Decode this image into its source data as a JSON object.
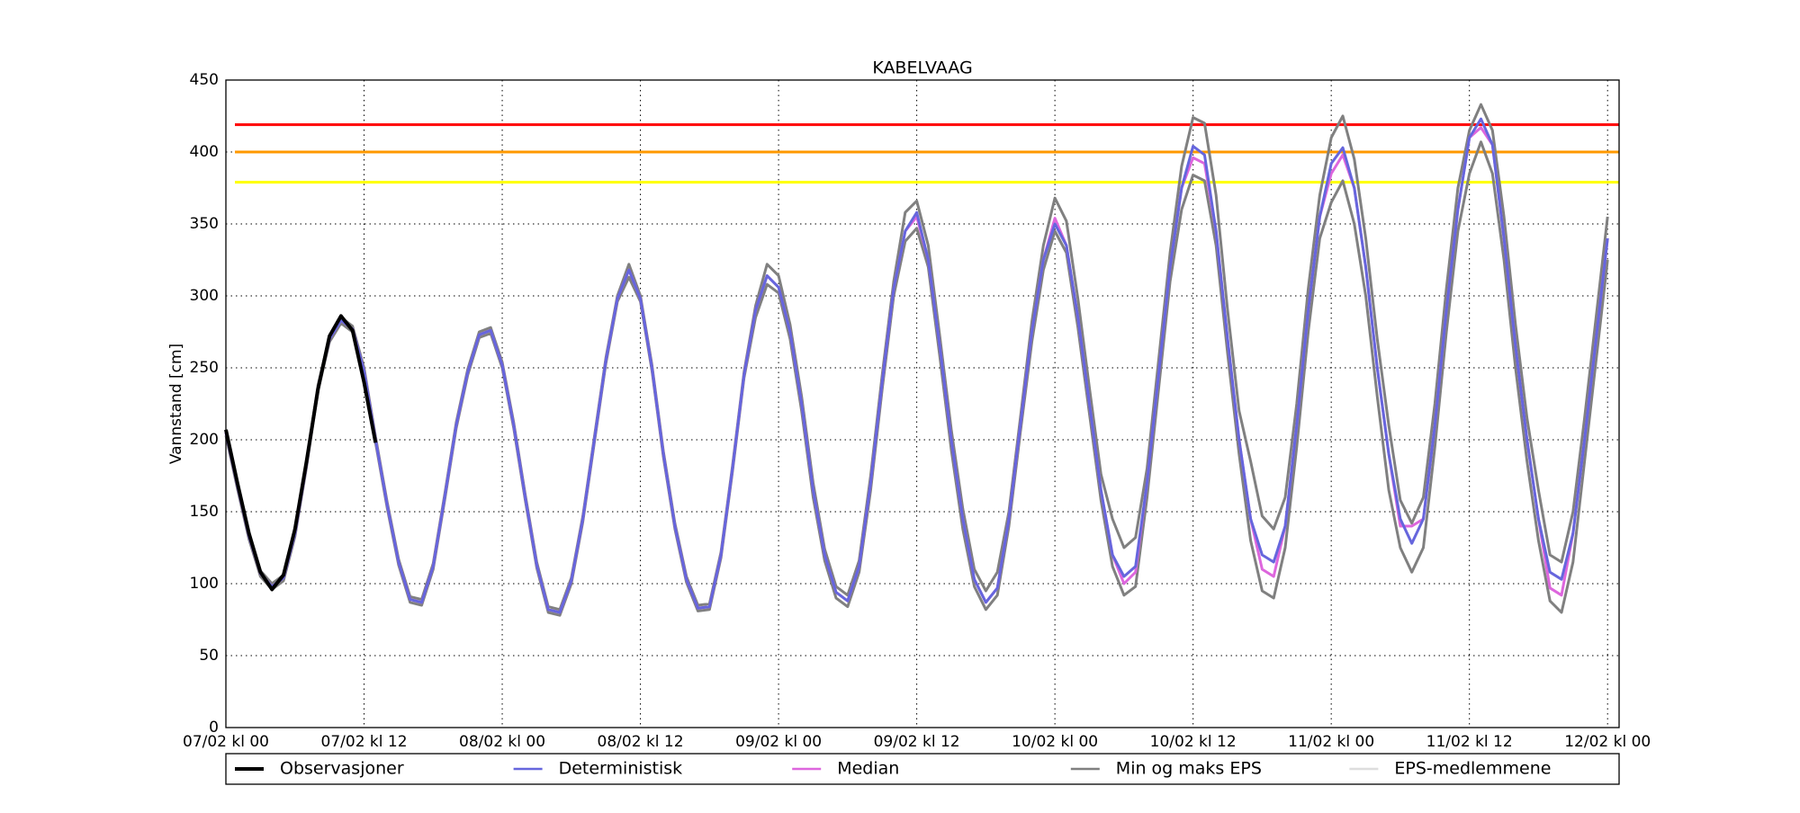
{
  "chart_data": {
    "type": "line",
    "title": "KABELVAAG",
    "y_label": "Vannstand [cm]",
    "x": [
      0,
      1,
      2,
      3,
      4,
      5,
      6,
      7,
      8,
      9,
      10,
      11,
      12,
      13,
      14,
      15,
      16,
      17,
      18,
      19,
      20,
      21,
      22,
      23,
      24,
      25,
      26,
      27,
      28,
      29,
      30,
      31,
      32,
      33,
      34,
      35,
      36,
      37,
      38,
      39,
      40,
      41,
      42,
      43,
      44,
      45,
      46,
      47,
      48,
      49,
      50,
      51,
      52,
      53,
      54,
      55,
      56,
      57,
      58,
      59,
      60,
      61,
      62,
      63,
      64,
      65,
      66,
      67,
      68,
      69,
      70,
      71,
      72,
      73,
      74,
      75,
      76,
      77,
      78,
      79,
      80,
      81,
      82,
      83,
      84,
      85,
      86,
      87,
      88,
      89,
      90,
      91,
      92,
      93,
      94,
      95,
      96,
      97,
      98,
      99,
      100,
      101,
      102,
      103,
      104,
      105,
      106,
      107,
      108,
      109,
      110,
      111,
      112,
      113,
      114,
      115,
      116,
      117,
      118,
      119,
      120
    ],
    "xlim": [
      0,
      121
    ],
    "xticks": [
      {
        "value": 0,
        "label": "07/02 kl 00"
      },
      {
        "value": 12,
        "label": "07/02 kl 12"
      },
      {
        "value": 24,
        "label": "08/02 kl 00"
      },
      {
        "value": 36,
        "label": "08/02 kl 12"
      },
      {
        "value": 48,
        "label": "09/02 kl 00"
      },
      {
        "value": 60,
        "label": "09/02 kl 12"
      },
      {
        "value": 72,
        "label": "10/02 kl 00"
      },
      {
        "value": 84,
        "label": "10/02 kl 12"
      },
      {
        "value": 96,
        "label": "11/02 kl 00"
      },
      {
        "value": 108,
        "label": "11/02 kl 12"
      },
      {
        "value": 120,
        "label": "12/02 kl 00"
      }
    ],
    "ylim": [
      0,
      450
    ],
    "yticks": [
      0,
      50,
      100,
      150,
      200,
      250,
      300,
      350,
      400,
      450
    ],
    "grid": true,
    "reference_lines": [
      {
        "value": 419,
        "color": "#ff0000"
      },
      {
        "value": 400,
        "color": "#ff9900"
      },
      {
        "value": 379,
        "color": "#ffff00"
      }
    ],
    "series": [
      {
        "name": "Observasjoner",
        "color": "#000000",
        "x": [
          0,
          1,
          2,
          3,
          4,
          5,
          6,
          7,
          8,
          9,
          10,
          11,
          12,
          13
        ],
        "values": [
          207,
          170,
          135,
          108,
          96,
          106,
          138,
          185,
          235,
          272,
          286,
          276,
          240,
          198
        ]
      },
      {
        "name": "Deterministisk",
        "color": "#6666dd",
        "values": [
          205,
          168,
          133,
          107,
          98,
          104,
          135,
          183,
          236,
          270,
          283,
          277,
          248,
          200,
          155,
          115,
          89,
          87,
          112,
          160,
          210,
          247,
          273,
          276,
          252,
          210,
          160,
          113,
          82,
          80,
          102,
          145,
          200,
          255,
          298,
          318,
          298,
          250,
          190,
          140,
          103,
          83,
          84,
          120,
          180,
          245,
          290,
          314,
          306,
          275,
          225,
          165,
          120,
          94,
          88,
          112,
          170,
          240,
          305,
          345,
          358,
          325,
          265,
          200,
          145,
          103,
          87,
          97,
          145,
          210,
          275,
          325,
          350,
          335,
          285,
          225,
          165,
          120,
          105,
          112,
          170,
          245,
          320,
          375,
          404,
          398,
          345,
          270,
          200,
          145,
          120,
          115,
          140,
          210,
          290,
          355,
          392,
          403,
          375,
          320,
          250,
          190,
          145,
          128,
          145,
          210,
          290,
          360,
          410,
          423,
          405,
          340,
          265,
          200,
          145,
          108,
          103,
          135,
          200,
          270,
          340
        ]
      },
      {
        "name": "Median",
        "color": "#dd66dd",
        "values": [
          205,
          168,
          133,
          107,
          98,
          104,
          135,
          183,
          236,
          270,
          283,
          277,
          248,
          200,
          155,
          115,
          89,
          87,
          112,
          160,
          210,
          247,
          273,
          276,
          252,
          210,
          160,
          113,
          82,
          80,
          102,
          145,
          200,
          255,
          298,
          318,
          298,
          250,
          190,
          140,
          103,
          83,
          84,
          120,
          180,
          245,
          290,
          314,
          306,
          275,
          225,
          165,
          120,
          94,
          88,
          112,
          170,
          240,
          305,
          345,
          355,
          325,
          265,
          200,
          145,
          103,
          87,
          97,
          145,
          210,
          275,
          325,
          354,
          335,
          285,
          225,
          165,
          120,
          100,
          108,
          170,
          245,
          320,
          375,
          396,
          392,
          345,
          270,
          200,
          145,
          110,
          105,
          140,
          210,
          290,
          355,
          385,
          398,
          375,
          320,
          250,
          190,
          140,
          140,
          145,
          210,
          290,
          360,
          410,
          417,
          405,
          340,
          265,
          200,
          145,
          97,
          92,
          135,
          200,
          270,
          340
        ]
      },
      {
        "name": "Min og maks EPS",
        "color": "#808080",
        "min": [
          203,
          166,
          131,
          105,
          96,
          102,
          133,
          181,
          234,
          268,
          281,
          275,
          246,
          198,
          153,
          113,
          87,
          85,
          110,
          158,
          208,
          245,
          271,
          274,
          250,
          208,
          158,
          111,
          80,
          78,
          100,
          143,
          198,
          253,
          296,
          313,
          296,
          248,
          188,
          138,
          101,
          81,
          82,
          118,
          178,
          243,
          285,
          308,
          302,
          270,
          220,
          160,
          116,
          90,
          84,
          108,
          165,
          235,
          300,
          338,
          347,
          320,
          258,
          193,
          138,
          98,
          82,
          92,
          140,
          205,
          268,
          318,
          345,
          330,
          278,
          218,
          158,
          112,
          92,
          98,
          160,
          235,
          310,
          360,
          384,
          380,
          335,
          260,
          190,
          130,
          95,
          90,
          125,
          195,
          275,
          340,
          365,
          380,
          350,
          300,
          230,
          165,
          125,
          108,
          125,
          195,
          275,
          345,
          385,
          407,
          385,
          325,
          250,
          185,
          130,
          88,
          80,
          115,
          185,
          255,
          325
        ],
        "max": [
          207,
          170,
          135,
          109,
          100,
          106,
          137,
          185,
          238,
          272,
          285,
          279,
          250,
          202,
          157,
          117,
          91,
          89,
          114,
          162,
          212,
          249,
          275,
          278,
          254,
          212,
          162,
          115,
          84,
          82,
          104,
          147,
          202,
          257,
          300,
          322,
          300,
          252,
          192,
          142,
          105,
          85,
          86,
          122,
          182,
          247,
          293,
          322,
          314,
          280,
          230,
          170,
          124,
          98,
          92,
          116,
          175,
          245,
          310,
          358,
          366,
          335,
          272,
          207,
          152,
          110,
          95,
          108,
          150,
          215,
          282,
          335,
          368,
          352,
          298,
          236,
          176,
          145,
          125,
          132,
          180,
          255,
          330,
          390,
          424,
          420,
          370,
          290,
          220,
          185,
          147,
          138,
          160,
          225,
          305,
          370,
          410,
          425,
          395,
          340,
          270,
          210,
          158,
          142,
          160,
          225,
          305,
          375,
          415,
          433,
          415,
          355,
          280,
          215,
          165,
          120,
          115,
          150,
          215,
          285,
          355
        ]
      },
      {
        "name": "EPS-medlemmene",
        "color": "#dddddd"
      }
    ]
  }
}
